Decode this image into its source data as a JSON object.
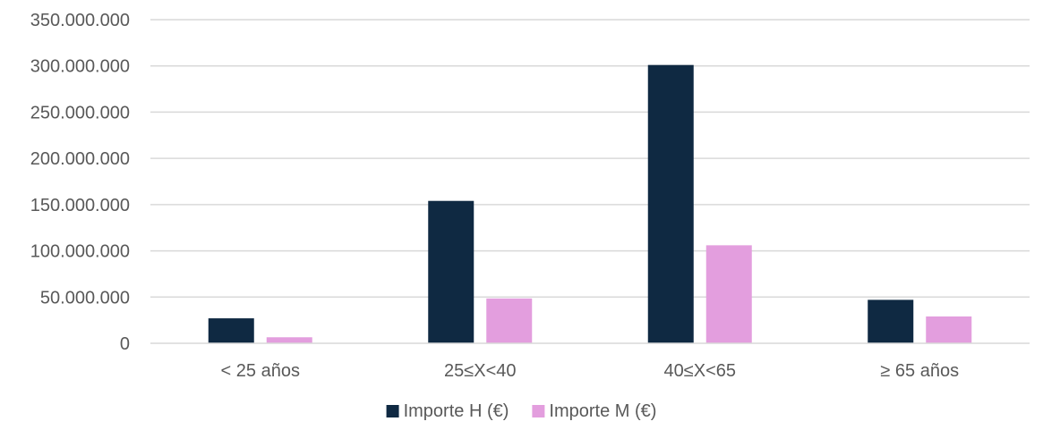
{
  "chart_data": {
    "type": "bar",
    "categories": [
      "< 25 años",
      "25≤X<40",
      "40≤X<65",
      "≥ 65 años"
    ],
    "series": [
      {
        "name": "Importe H (€)",
        "color": "#0f2942",
        "values": [
          27000000,
          154000000,
          301000000,
          47000000
        ]
      },
      {
        "name": "Importe M (€)",
        "color": "#e39ede",
        "values": [
          6500000,
          48500000,
          106000000,
          29000000
        ]
      }
    ],
    "ylim": [
      0,
      350000000
    ],
    "yticks": [
      "0",
      "50.000.000",
      "100.000.000",
      "150.000.000",
      "200.000.000",
      "250.000.000",
      "300.000.000",
      "350.000.000"
    ],
    "grid": true,
    "legend_position": "bottom"
  }
}
